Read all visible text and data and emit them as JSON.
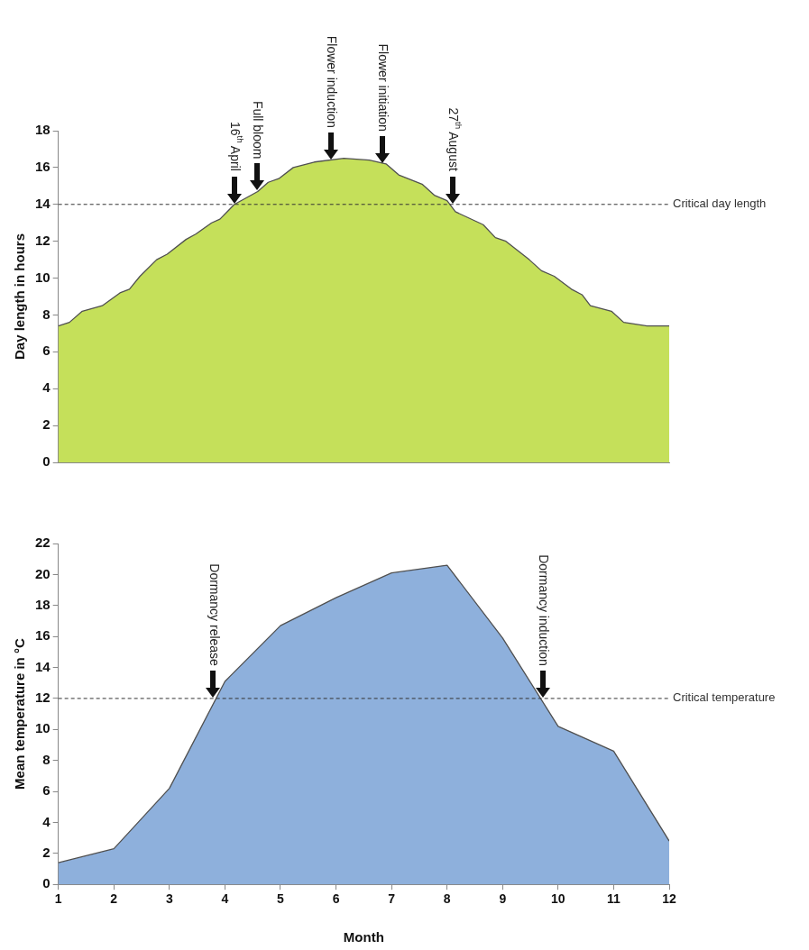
{
  "chart_data": [
    {
      "type": "area",
      "ylabel": "Day length in hours",
      "xlim": [
        1,
        12
      ],
      "ylim": [
        0,
        18
      ],
      "yticks": [
        0,
        2,
        4,
        6,
        8,
        10,
        12,
        14,
        16,
        18
      ],
      "tick_labels": "y",
      "grid": false,
      "legend": false,
      "marker": "none",
      "x": [
        1.0,
        1.2,
        1.43,
        1.79,
        2.11,
        2.28,
        2.47,
        2.77,
        2.96,
        3.3,
        3.48,
        3.76,
        3.91,
        4.17,
        4.59,
        4.78,
        4.97,
        5.23,
        5.61,
        6.14,
        6.6,
        6.9,
        7.13,
        7.55,
        7.77,
        8.0,
        8.15,
        8.65,
        8.87,
        9.06,
        9.48,
        9.7,
        9.93,
        10.24,
        10.43,
        10.58,
        10.96,
        11.18,
        11.6,
        12.0
      ],
      "series": [
        {
          "color": "#c5e05a",
          "values": [
            7.4,
            7.6,
            8.2,
            8.5,
            9.2,
            9.4,
            10.1,
            11.0,
            11.3,
            12.1,
            12.4,
            13.0,
            13.2,
            14.0,
            14.7,
            15.2,
            15.4,
            16.0,
            16.3,
            16.5,
            16.4,
            16.2,
            15.6,
            15.1,
            14.5,
            14.2,
            13.6,
            12.9,
            12.2,
            12.0,
            11.0,
            10.4,
            10.1,
            9.4,
            9.1,
            8.5,
            8.2,
            7.6,
            7.4,
            7.4
          ]
        }
      ],
      "ref_lines": [
        {
          "axis": "y",
          "value": 14,
          "label": "Critical day length",
          "line_style": "dashed"
        }
      ],
      "annotations": [
        {
          "text": "16$^{th}$ April",
          "x": 4.17,
          "y": 14
        },
        {
          "text": "Full bloom",
          "x": 4.57,
          "y": 14.7
        },
        {
          "text": "Flower induction",
          "x": 5.91,
          "y": 16.4
        },
        {
          "text": "Flower initiation",
          "x": 6.84,
          "y": 16.2
        },
        {
          "text": "27$^{th}$ August",
          "x": 8.1,
          "y": 14
        }
      ]
    },
    {
      "type": "area",
      "xlabel": "Month",
      "ylabel": "Mean temperature in °C",
      "xlim": [
        1,
        12
      ],
      "xticks": [
        1,
        2,
        3,
        4,
        5,
        6,
        7,
        8,
        9,
        10,
        11,
        12
      ],
      "ylim": [
        0,
        22
      ],
      "yticks": [
        0,
        2,
        4,
        6,
        8,
        10,
        12,
        14,
        16,
        18,
        20,
        22
      ],
      "grid": false,
      "legend": false,
      "marker": "none",
      "x": [
        1,
        2,
        3,
        4,
        5,
        6,
        7,
        8,
        9,
        10,
        11,
        12
      ],
      "series": [
        {
          "color": "#8eb0dc",
          "values": [
            1.4,
            2.3,
            6.2,
            13.1,
            16.7,
            18.5,
            20.1,
            20.6,
            15.9,
            10.2,
            8.6,
            2.8
          ]
        }
      ],
      "ref_lines": [
        {
          "axis": "y",
          "value": 12,
          "label": "Critical temperature",
          "line_style": "dashed"
        }
      ],
      "annotations": [
        {
          "text": "Dormancy release",
          "x": 3.79,
          "y": 12
        },
        {
          "text": "Dormancy induction",
          "x": 9.72,
          "y": 12
        }
      ]
    }
  ]
}
